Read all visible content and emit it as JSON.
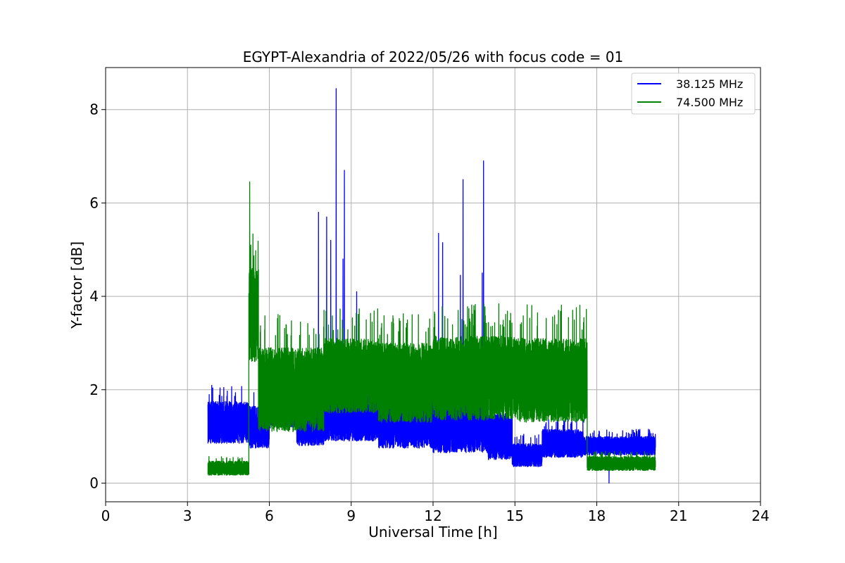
{
  "chart_data": {
    "type": "line",
    "title": "EGYPT-Alexandria of 2022/05/26 with focus code = 01",
    "xlabel": "Universal Time [h]",
    "ylabel": "Y-factor [dB]",
    "xlim": [
      0,
      24
    ],
    "ylim": [
      -0.4,
      8.9
    ],
    "xticks": [
      0,
      3,
      6,
      9,
      12,
      15,
      18,
      21,
      24
    ],
    "yticks": [
      0,
      2,
      4,
      6,
      8
    ],
    "grid": true,
    "legend_position": "top-right",
    "series": [
      {
        "name": "38.125 MHz",
        "color": "#0000ff",
        "segments": [
          {
            "x0": 3.75,
            "x1": 5.25,
            "base": 1.3,
            "amp": 0.45
          },
          {
            "x0": 5.25,
            "x1": 6.0,
            "base": 1.2,
            "amp": 0.45
          },
          {
            "x0": 6.0,
            "x1": 7.0,
            "base": 1.45,
            "amp": 0.25
          },
          {
            "x0": 7.0,
            "x1": 8.0,
            "base": 1.3,
            "amp": 0.5
          },
          {
            "x0": 8.0,
            "x1": 10.0,
            "base": 1.4,
            "amp": 0.5
          },
          {
            "x0": 10.0,
            "x1": 12.0,
            "base": 1.3,
            "amp": 0.55
          },
          {
            "x0": 12.0,
            "x1": 14.0,
            "base": 1.2,
            "amp": 0.55
          },
          {
            "x0": 14.0,
            "x1": 14.9,
            "base": 1.0,
            "amp": 0.5
          },
          {
            "x0": 14.9,
            "x1": 16.0,
            "base": 0.6,
            "amp": 0.25
          },
          {
            "x0": 16.0,
            "x1": 17.5,
            "base": 0.85,
            "amp": 0.3
          },
          {
            "x0": 17.5,
            "x1": 20.15,
            "base": 0.8,
            "amp": 0.2
          }
        ],
        "spikes": [
          {
            "x": 7.8,
            "y": 5.8
          },
          {
            "x": 8.1,
            "y": 5.7
          },
          {
            "x": 8.25,
            "y": 5.2
          },
          {
            "x": 8.45,
            "y": 8.45
          },
          {
            "x": 8.7,
            "y": 4.8
          },
          {
            "x": 8.75,
            "y": 6.7
          },
          {
            "x": 9.2,
            "y": 4.1
          },
          {
            "x": 12.2,
            "y": 5.35
          },
          {
            "x": 12.35,
            "y": 5.15
          },
          {
            "x": 13.0,
            "y": 4.45
          },
          {
            "x": 13.1,
            "y": 6.5
          },
          {
            "x": 13.8,
            "y": 4.5
          },
          {
            "x": 13.85,
            "y": 6.9
          },
          {
            "x": 18.45,
            "y": 0.0
          }
        ]
      },
      {
        "name": "74.500 MHz",
        "color": "#008000",
        "segments": [
          {
            "x0": 3.75,
            "x1": 5.25,
            "base": 0.32,
            "amp": 0.15
          },
          {
            "x0": 5.25,
            "x1": 5.6,
            "base": 3.6,
            "amp": 1.0
          },
          {
            "x0": 5.6,
            "x1": 8.0,
            "base": 2.0,
            "amp": 0.9
          },
          {
            "x0": 8.0,
            "x1": 10.0,
            "base": 2.3,
            "amp": 0.8
          },
          {
            "x0": 10.0,
            "x1": 12.0,
            "base": 2.15,
            "amp": 0.85
          },
          {
            "x0": 12.0,
            "x1": 15.0,
            "base": 2.25,
            "amp": 0.9
          },
          {
            "x0": 15.0,
            "x1": 17.65,
            "base": 2.2,
            "amp": 0.9
          },
          {
            "x0": 17.65,
            "x1": 20.15,
            "base": 0.42,
            "amp": 0.15
          }
        ],
        "spikes": [
          {
            "x": 5.28,
            "y": 6.45
          },
          {
            "x": 5.32,
            "y": 5.1
          }
        ]
      }
    ]
  }
}
